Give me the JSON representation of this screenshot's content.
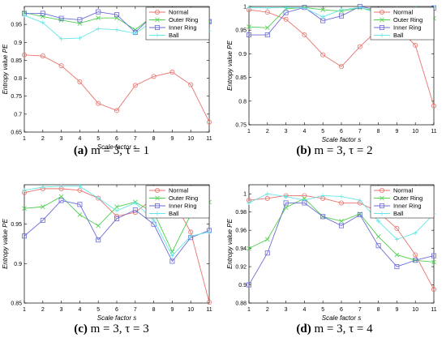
{
  "captions": [
    {
      "letter": "(a)",
      "text": " m = 3, τ = 1"
    },
    {
      "letter": "(b)",
      "text": " m = 3, τ = 2"
    },
    {
      "letter": "(c)",
      "text": " m = 3, τ = 3"
    },
    {
      "letter": "(d)",
      "text": " m = 3, τ = 4"
    }
  ],
  "colors": {
    "Normal": "#e8736c",
    "Outer Ring": "#4fd04f",
    "Inner Ring": "#6b6bd8",
    "Ball": "#66e6e6"
  },
  "chart_data": [
    {
      "type": "line",
      "xlabel": "Scale factor s",
      "ylabel": "Entropy value PE",
      "xlim": [
        1,
        11
      ],
      "ylim": [
        0.65,
        1.0
      ],
      "yticks": [
        0.65,
        0.7,
        0.75,
        0.8,
        0.85,
        0.9,
        0.95
      ],
      "ytick_labels": [
        "0.65",
        "0.7",
        "0.75",
        "0.8",
        "0.85",
        "0.9",
        "0.95"
      ],
      "x": [
        1,
        2,
        3,
        4,
        5,
        6,
        7,
        8,
        9,
        10,
        11
      ],
      "legend_position": "top-right",
      "series": [
        {
          "name": "Normal",
          "values": [
            0.865,
            0.862,
            0.835,
            0.79,
            0.73,
            0.71,
            0.78,
            0.805,
            0.817,
            0.782,
            0.678
          ]
        },
        {
          "name": "Outer Ring",
          "values": [
            0.983,
            0.972,
            0.962,
            0.953,
            0.968,
            0.968,
            0.935,
            0.975,
            0.98,
            0.978,
            0.958
          ]
        },
        {
          "name": "Inner Ring",
          "values": [
            0.98,
            0.981,
            0.967,
            0.963,
            0.985,
            0.977,
            0.928,
            0.977,
            0.98,
            0.97,
            0.958
          ]
        },
        {
          "name": "Ball",
          "values": [
            0.975,
            0.955,
            0.91,
            0.912,
            0.938,
            0.935,
            0.925,
            0.96,
            0.958,
            0.932,
            0.932
          ]
        }
      ]
    },
    {
      "type": "line",
      "xlabel": "Scale factor s",
      "ylabel": "Entropy value PE",
      "xlim": [
        1,
        11
      ],
      "ylim": [
        0.75,
        1.0
      ],
      "yticks": [
        0.75,
        0.8,
        0.85,
        0.9,
        0.95,
        1
      ],
      "ytick_labels": [
        "0.75",
        "0.8",
        "0.85",
        "0.9",
        "0.95",
        "1"
      ],
      "x": [
        1,
        2,
        3,
        4,
        5,
        6,
        7,
        8,
        9,
        10,
        11
      ],
      "legend_position": "top-right",
      "series": [
        {
          "name": "Normal",
          "values": [
            0.993,
            0.988,
            0.973,
            0.94,
            0.898,
            0.873,
            0.915,
            0.952,
            0.957,
            0.918,
            0.79
          ]
        },
        {
          "name": "Outer Ring",
          "values": [
            0.957,
            0.955,
            0.995,
            0.998,
            0.993,
            0.99,
            0.997,
            0.99,
            0.993,
            0.975,
            0.975
          ]
        },
        {
          "name": "Inner Ring",
          "values": [
            0.94,
            0.94,
            0.987,
            0.998,
            0.97,
            0.98,
            1.0,
            0.993,
            0.983,
            0.988,
            0.997
          ]
        },
        {
          "name": "Ball",
          "values": [
            0.998,
            0.997,
            0.998,
            0.997,
            0.978,
            0.993,
            0.998,
            0.985,
            0.997,
            0.997,
            0.998
          ]
        }
      ]
    },
    {
      "type": "line",
      "xlabel": "Scale factor s",
      "ylabel": "Entropy value PE",
      "xlim": [
        1,
        11
      ],
      "ylim": [
        0.85,
        1.0
      ],
      "yticks": [
        0.85,
        0.9,
        0.95
      ],
      "ytick_labels": [
        "0.85",
        "0.9",
        "0.95"
      ],
      "x": [
        1,
        2,
        3,
        4,
        5,
        6,
        7,
        8,
        9,
        10,
        11
      ],
      "legend_position": "top-right",
      "series": [
        {
          "name": "Normal",
          "values": [
            0.99,
            0.995,
            0.995,
            0.993,
            0.983,
            0.96,
            0.965,
            0.983,
            0.982,
            0.94,
            0.851
          ]
        },
        {
          "name": "Outer Ring",
          "values": [
            0.97,
            0.972,
            0.985,
            0.962,
            0.948,
            0.972,
            0.978,
            0.965,
            0.915,
            0.962,
            0.978
          ]
        },
        {
          "name": "Inner Ring",
          "values": [
            0.935,
            0.955,
            0.98,
            0.975,
            0.93,
            0.957,
            0.968,
            0.95,
            0.903,
            0.933,
            0.942
          ]
        },
        {
          "name": "Ball",
          "values": [
            0.993,
            0.997,
            0.998,
            0.998,
            0.983,
            0.967,
            0.977,
            0.955,
            0.91,
            0.935,
            0.94
          ]
        }
      ]
    },
    {
      "type": "line",
      "xlabel": "Scale factor s",
      "ylabel": "Entropy value PE",
      "xlim": [
        1,
        11
      ],
      "ylim": [
        0.88,
        1.01
      ],
      "yticks": [
        0.88,
        0.9,
        0.92,
        0.94,
        0.96,
        0.98,
        1
      ],
      "ytick_labels": [
        "0.88",
        "0.9",
        "0.92",
        "0.94",
        "0.96",
        "0.98",
        "1"
      ],
      "x": [
        1,
        2,
        3,
        4,
        5,
        6,
        7,
        8,
        9,
        10,
        11
      ],
      "legend_position": "top-right",
      "series": [
        {
          "name": "Normal",
          "values": [
            0.993,
            0.995,
            0.998,
            0.998,
            0.995,
            0.99,
            0.99,
            0.98,
            0.962,
            0.933,
            0.895
          ]
        },
        {
          "name": "Outer Ring",
          "values": [
            0.94,
            0.95,
            0.985,
            0.995,
            0.975,
            0.97,
            0.978,
            0.953,
            0.933,
            0.927,
            0.925
          ]
        },
        {
          "name": "Inner Ring",
          "values": [
            0.9,
            0.935,
            0.99,
            0.99,
            0.975,
            0.965,
            0.977,
            0.943,
            0.92,
            0.927,
            0.932
          ]
        },
        {
          "name": "Ball",
          "values": [
            0.99,
            1.0,
            0.997,
            0.993,
            0.998,
            0.997,
            0.993,
            0.97,
            0.95,
            0.957,
            0.978
          ]
        }
      ]
    }
  ]
}
